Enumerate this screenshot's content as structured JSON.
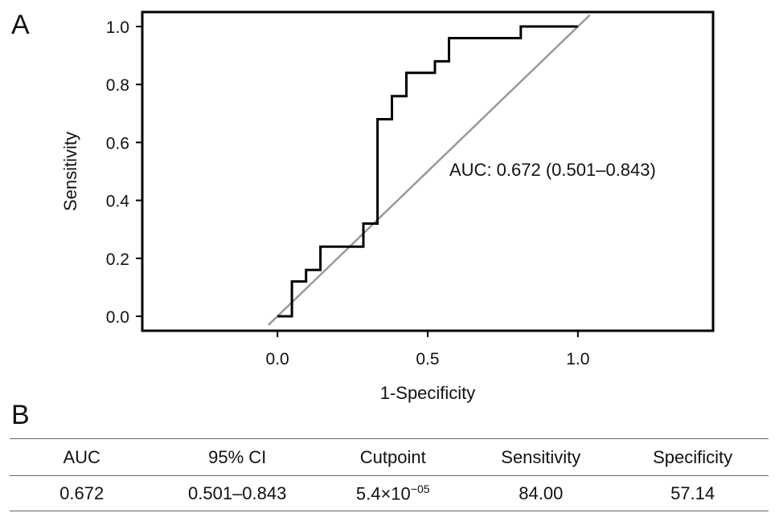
{
  "panels": {
    "a": "A",
    "b": "B"
  },
  "chart_data": {
    "type": "line",
    "xlabel": "1-Specificity",
    "ylabel": "Sensitivity",
    "xlim": [
      -0.45,
      1.45
    ],
    "ylim": [
      -0.05,
      1.05
    ],
    "xticks": [
      0.0,
      0.5,
      1.0
    ],
    "xtick_labels": [
      "0.0",
      "0.5",
      "1.0"
    ],
    "yticks": [
      0.0,
      0.2,
      0.4,
      0.6,
      0.8,
      1.0
    ],
    "ytick_labels": [
      "0.0",
      "0.2",
      "0.4",
      "0.6",
      "0.8",
      "1.0"
    ],
    "grid": false,
    "annotation": "AUC: 0.672 (0.501–0.843)",
    "series": [
      {
        "color": "#000000",
        "x": [
          0.0,
          0.048,
          0.048,
          0.095,
          0.095,
          0.143,
          0.143,
          0.286,
          0.286,
          0.333,
          0.333,
          0.381,
          0.381,
          0.429,
          0.429,
          0.524,
          0.524,
          0.571,
          0.571,
          0.81,
          0.81,
          1.0
        ],
        "y": [
          0.0,
          0.0,
          0.12,
          0.12,
          0.16,
          0.16,
          0.24,
          0.24,
          0.32,
          0.32,
          0.68,
          0.68,
          0.76,
          0.76,
          0.84,
          0.84,
          0.88,
          0.88,
          0.96,
          0.96,
          1.0,
          1.0
        ]
      },
      {
        "color": "#999999",
        "x": [
          -0.03,
          1.04
        ],
        "y": [
          -0.03,
          1.04
        ]
      }
    ]
  },
  "table": {
    "headers": [
      "AUC",
      "95% CI",
      "Cutpoint",
      "Sensitivity",
      "Specificity"
    ],
    "row": {
      "auc": "0.672",
      "ci": "0.501–0.843",
      "cutpoint_base": "5.4×10",
      "cutpoint_exp": "−05",
      "sensitivity": "84.00",
      "specificity": "57.14"
    }
  }
}
